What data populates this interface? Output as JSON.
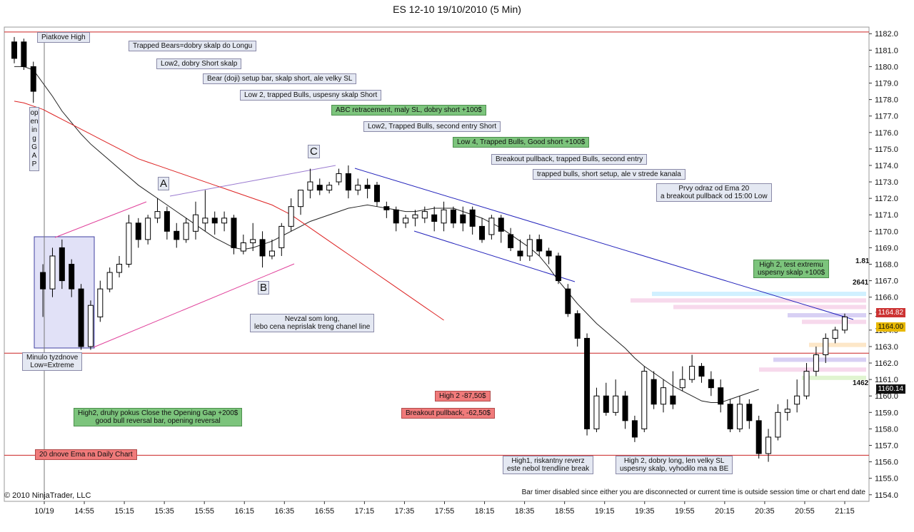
{
  "title": "ES 12-10  19/10/2010 (5 Min)",
  "copyright": "© 2010 NinjaTrader, LLC",
  "bar_timer": "Bar timer disabled since either you are disconnected or current time is outside session time or chart end date",
  "price_tags": {
    "last": "1164.82",
    "ema": "1164.00",
    "low": "1160.14"
  },
  "side_values": {
    "v1": "1.81",
    "v2": "2641",
    "v3": "1462"
  },
  "colors": {
    "ema_fast": "#222222",
    "ema_slow": "#dd2222",
    "trend": "#2222bb",
    "channel": "#e0409a",
    "level": "#cc2222",
    "ema20daily": "#cc2222"
  },
  "letters": {
    "a": "A",
    "b": "B",
    "c": "C"
  },
  "vertical_label": "opening GAP",
  "annotations": [
    {
      "id": "platkove-high",
      "text": "Piatkove High",
      "style": "plain"
    },
    {
      "id": "trapped-bears",
      "text": "Trapped Bears=dobry skalp do Longu",
      "style": "plain"
    },
    {
      "id": "low2-short",
      "text": "Low2, dobry Short skalp",
      "style": "plain"
    },
    {
      "id": "bear-doji",
      "text": "Bear (doji) setup bar, skalp short, ale velky SL",
      "style": "plain"
    },
    {
      "id": "low2-trapped",
      "text": "Low 2, trapped Bulls, uspesny skalp Short",
      "style": "plain"
    },
    {
      "id": "abc-retr",
      "text": "ABC retracement, maly SL, dobry short +100$",
      "style": "green"
    },
    {
      "id": "low2-second",
      "text": "Low2, Trapped Bulls, second entry Short",
      "style": "plain"
    },
    {
      "id": "low4",
      "text": "Low 4, Trapped Bulls, Good short +100$",
      "style": "green"
    },
    {
      "id": "breakout-pb",
      "text": "Breakout pullback, trapped Bulls, second entry",
      "style": "plain"
    },
    {
      "id": "trapped-bulls",
      "text": "trapped bulls, short setup, ale v strede kanala",
      "style": "plain"
    },
    {
      "id": "prvy-odraz",
      "text": "Prvy odraz od Ema 20\na breakout pullback od 15:00 Low",
      "style": "plain"
    },
    {
      "id": "high2-test",
      "text": "High 2, test extremu\nuspesny skalp +100$",
      "style": "green"
    },
    {
      "id": "minulo",
      "text": "Minulo tyzdnove\nLow=Extreme",
      "style": "plain"
    },
    {
      "id": "high2-druhy",
      "text": "High2, druhy pokus Close the Opening Gap +200$\ngood bull reversal bar, opening reversal",
      "style": "green"
    },
    {
      "id": "ema20-daily",
      "text": "20 dnove Ema na Daily Chart",
      "style": "red"
    },
    {
      "id": "nevzal",
      "text": "Nevzal som long,\nlebo cena neprislak treng chanel line",
      "style": "plain"
    },
    {
      "id": "high2-loss",
      "text": "High 2 -87,50$",
      "style": "red"
    },
    {
      "id": "breakout-loss",
      "text": "Breakout pullback, -62,50$",
      "style": "red"
    },
    {
      "id": "high1",
      "text": "High1, riskantny reverz\neste nebol trendline break",
      "style": "plain"
    },
    {
      "id": "high2-dobry",
      "text": "High 2, dobry long, len velky SL\nuspesny skalp, vyhodilo ma na BE",
      "style": "plain"
    }
  ],
  "chart_data": {
    "type": "candlestick",
    "title": "ES 12-10  19/10/2010 (5 Min)",
    "ylim": [
      1153.6,
      1182.4
    ],
    "y_ticks": [
      1154,
      1155,
      1156,
      1157,
      1158,
      1159,
      1160,
      1161,
      1162,
      1163,
      1164,
      1165,
      1166,
      1167,
      1168,
      1169,
      1170,
      1171,
      1172,
      1173,
      1174,
      1175,
      1176,
      1177,
      1178,
      1179,
      1180,
      1181,
      1182
    ],
    "x_ticks": [
      "10/19",
      "14:55",
      "15:15",
      "15:35",
      "15:55",
      "16:15",
      "16:35",
      "16:55",
      "17:15",
      "17:35",
      "17:55",
      "18:15",
      "18:35",
      "18:55",
      "19:15",
      "19:35",
      "19:55",
      "20:15",
      "20:35",
      "20:55",
      "21:15"
    ],
    "horizontal_levels": [
      1182.1,
      1162.6,
      1156.4
    ],
    "candles": [
      [
        1181.5,
        1180.5,
        1181.8,
        1180.2
      ],
      [
        1181.5,
        1180.0,
        1181.7,
        1179.8
      ],
      [
        1180.0,
        1178.5,
        1180.3,
        1177.8
      ],
      [
        1167.5,
        1166.5,
        1168.0,
        1164.8
      ],
      [
        1166.5,
        1168.5,
        1169.0,
        1166.0
      ],
      [
        1169.0,
        1167.0,
        1169.5,
        1166.5
      ],
      [
        1168.0,
        1166.5,
        1168.3,
        1166.0
      ],
      [
        1166.5,
        1163.0,
        1166.8,
        1162.8
      ],
      [
        1163.0,
        1165.5,
        1165.8,
        1162.8
      ],
      [
        1164.8,
        1166.5,
        1167.0,
        1164.5
      ],
      [
        1166.5,
        1167.5,
        1167.8,
        1166.3
      ],
      [
        1167.5,
        1168.0,
        1168.5,
        1167.2
      ],
      [
        1168.0,
        1170.5,
        1171.0,
        1167.8
      ],
      [
        1170.5,
        1169.5,
        1170.8,
        1169.0
      ],
      [
        1169.5,
        1170.8,
        1171.0,
        1169.2
      ],
      [
        1170.8,
        1171.2,
        1172.0,
        1170.5
      ],
      [
        1171.2,
        1170.0,
        1171.5,
        1169.5
      ],
      [
        1170.0,
        1169.5,
        1170.5,
        1169.0
      ],
      [
        1169.5,
        1170.5,
        1170.8,
        1169.3
      ],
      [
        1170.0,
        1171.0,
        1171.8,
        1169.5
      ],
      [
        1170.5,
        1170.8,
        1172.5,
        1170.0
      ],
      [
        1170.8,
        1170.5,
        1171.2,
        1169.8
      ],
      [
        1170.5,
        1170.8,
        1171.2,
        1170.0
      ],
      [
        1170.8,
        1169.0,
        1171.0,
        1168.6
      ],
      [
        1168.8,
        1169.3,
        1169.8,
        1168.6
      ],
      [
        1169.3,
        1169.5,
        1170.5,
        1168.8
      ],
      [
        1169.5,
        1168.5,
        1170.0,
        1167.8
      ],
      [
        1168.5,
        1168.8,
        1169.5,
        1168.3
      ],
      [
        1169.0,
        1170.3,
        1170.5,
        1168.5
      ],
      [
        1170.3,
        1171.5,
        1172.0,
        1170.0
      ],
      [
        1171.5,
        1172.5,
        1172.5,
        1171.0
      ],
      [
        1172.5,
        1173.0,
        1173.8,
        1172.0
      ],
      [
        1172.8,
        1172.5,
        1173.2,
        1172.2
      ],
      [
        1172.5,
        1172.8,
        1173.0,
        1172.3
      ],
      [
        1173.0,
        1173.5,
        1173.8,
        1172.8
      ],
      [
        1173.5,
        1172.5,
        1174.0,
        1172.0
      ],
      [
        1172.5,
        1172.8,
        1173.2,
        1172.2
      ],
      [
        1172.8,
        1172.6,
        1173.2,
        1172.0
      ],
      [
        1172.8,
        1171.8,
        1173.0,
        1171.5
      ],
      [
        1171.5,
        1171.3,
        1171.8,
        1170.8
      ],
      [
        1171.3,
        1170.5,
        1171.5,
        1170.0
      ],
      [
        1170.5,
        1170.8,
        1171.0,
        1170.2
      ],
      [
        1170.8,
        1171.0,
        1171.3,
        1170.3
      ],
      [
        1170.8,
        1171.2,
        1171.5,
        1170.5
      ],
      [
        1171.0,
        1170.6,
        1171.5,
        1170.0
      ],
      [
        1170.5,
        1171.3,
        1171.8,
        1170.0
      ],
      [
        1171.3,
        1170.5,
        1171.5,
        1170.2
      ],
      [
        1171.0,
        1170.5,
        1171.5,
        1170.0
      ],
      [
        1171.3,
        1170.3,
        1171.5,
        1169.8
      ],
      [
        1170.3,
        1169.5,
        1170.8,
        1169.3
      ],
      [
        1169.8,
        1170.8,
        1171.0,
        1169.5
      ],
      [
        1170.8,
        1170.0,
        1171.0,
        1169.3
      ],
      [
        1169.8,
        1169.0,
        1170.2,
        1168.8
      ],
      [
        1168.8,
        1168.5,
        1169.5,
        1168.2
      ],
      [
        1168.5,
        1169.5,
        1169.8,
        1168.2
      ],
      [
        1169.5,
        1168.8,
        1169.8,
        1168.5
      ],
      [
        1168.8,
        1168.5,
        1169.0,
        1168.0
      ],
      [
        1168.5,
        1167.0,
        1168.7,
        1166.8
      ],
      [
        1166.5,
        1165.0,
        1166.8,
        1164.8
      ],
      [
        1165.0,
        1163.5,
        1165.2,
        1163.0
      ],
      [
        1163.5,
        1158.0,
        1163.8,
        1157.6
      ],
      [
        1158.0,
        1160.0,
        1160.5,
        1157.8
      ],
      [
        1160.0,
        1159.0,
        1160.8,
        1158.8
      ],
      [
        1159.0,
        1160.0,
        1161.0,
        1158.8
      ],
      [
        1160.0,
        1158.5,
        1160.3,
        1158.0
      ],
      [
        1158.5,
        1157.5,
        1158.8,
        1157.2
      ],
      [
        1158.0,
        1161.5,
        1161.8,
        1157.8
      ],
      [
        1161.0,
        1159.5,
        1161.5,
        1159.2
      ],
      [
        1159.5,
        1160.5,
        1161.0,
        1159.0
      ],
      [
        1160.0,
        1159.5,
        1161.5,
        1159.2
      ],
      [
        1160.5,
        1161.0,
        1161.8,
        1160.3
      ],
      [
        1161.0,
        1161.8,
        1162.5,
        1160.8
      ],
      [
        1161.8,
        1161.2,
        1162.0,
        1160.8
      ],
      [
        1161.0,
        1160.5,
        1161.5,
        1160.0
      ],
      [
        1160.5,
        1159.5,
        1161.0,
        1159.0
      ],
      [
        1159.5,
        1158.0,
        1159.8,
        1157.8
      ],
      [
        1158.0,
        1159.5,
        1160.0,
        1157.8
      ],
      [
        1159.5,
        1158.5,
        1159.8,
        1158.0
      ],
      [
        1158.5,
        1156.5,
        1158.8,
        1156.2
      ],
      [
        1156.5,
        1157.5,
        1158.0,
        1156.0
      ],
      [
        1157.5,
        1159.0,
        1159.5,
        1157.3
      ],
      [
        1159.0,
        1159.2,
        1159.8,
        1158.5
      ],
      [
        1159.5,
        1160.0,
        1161.0,
        1159.0
      ],
      [
        1160.0,
        1161.5,
        1162.0,
        1159.8
      ],
      [
        1161.5,
        1162.5,
        1163.0,
        1161.2
      ],
      [
        1162.5,
        1163.5,
        1163.8,
        1162.0
      ],
      [
        1163.5,
        1164.0,
        1164.2,
        1163.2
      ],
      [
        1164.0,
        1164.8,
        1165.0,
        1163.8
      ]
    ],
    "series": [
      {
        "name": "",
        "type": "ema_fast",
        "values": [
          1180.0,
          1180.0,
          1179.8,
          1179.0,
          1178.2,
          1177.3,
          1176.6,
          1175.9,
          1175.3,
          1174.8,
          1174.3,
          1173.8,
          1173.3,
          1172.8,
          1172.4,
          1172.0,
          1171.6,
          1171.2,
          1170.8,
          1170.4,
          1170.0,
          1169.6,
          1169.3,
          1169.0,
          1168.9,
          1169.0,
          1169.2,
          1169.4,
          1169.7,
          1170.0,
          1170.3,
          1170.6,
          1170.8,
          1171.0,
          1171.2,
          1171.4,
          1171.5,
          1171.6,
          1171.5,
          1171.4,
          1171.3,
          1171.2,
          1171.2,
          1171.3,
          1171.4,
          1171.4,
          1171.4,
          1171.2,
          1171.0,
          1170.8,
          1170.5,
          1170.2,
          1169.8,
          1169.4,
          1169.0,
          1168.5,
          1167.8,
          1167.0,
          1166.3,
          1165.6,
          1165.0,
          1164.4,
          1163.9,
          1163.4,
          1162.9,
          1162.3,
          1161.8,
          1161.4,
          1161.0,
          1160.6,
          1160.3,
          1160.0,
          1159.7,
          1159.6,
          1159.6,
          1159.8,
          1160.0,
          1160.2,
          1160.4
        ]
      },
      {
        "name": "",
        "type": "ema_slow",
        "values": [
          1177.9,
          1177.8,
          1177.6,
          1177.4,
          1177.1,
          1176.8,
          1176.5,
          1176.2,
          1175.9,
          1175.6,
          1175.3,
          1175.0,
          1174.7,
          1174.4,
          1174.2,
          1174.0,
          1173.8,
          1173.6,
          1173.4,
          1173.2,
          1173.0,
          1172.8,
          1172.6,
          1172.4,
          1172.2,
          1172.0,
          1171.8,
          1171.6,
          1171.3,
          1171.0,
          1170.6,
          1170.2,
          1169.8,
          1169.4,
          1169.0,
          1168.6,
          1168.2,
          1167.8,
          1167.4,
          1167.0,
          1166.6,
          1166.2,
          1165.8,
          1165.4,
          1165.0,
          1164.6
        ]
      }
    ]
  }
}
